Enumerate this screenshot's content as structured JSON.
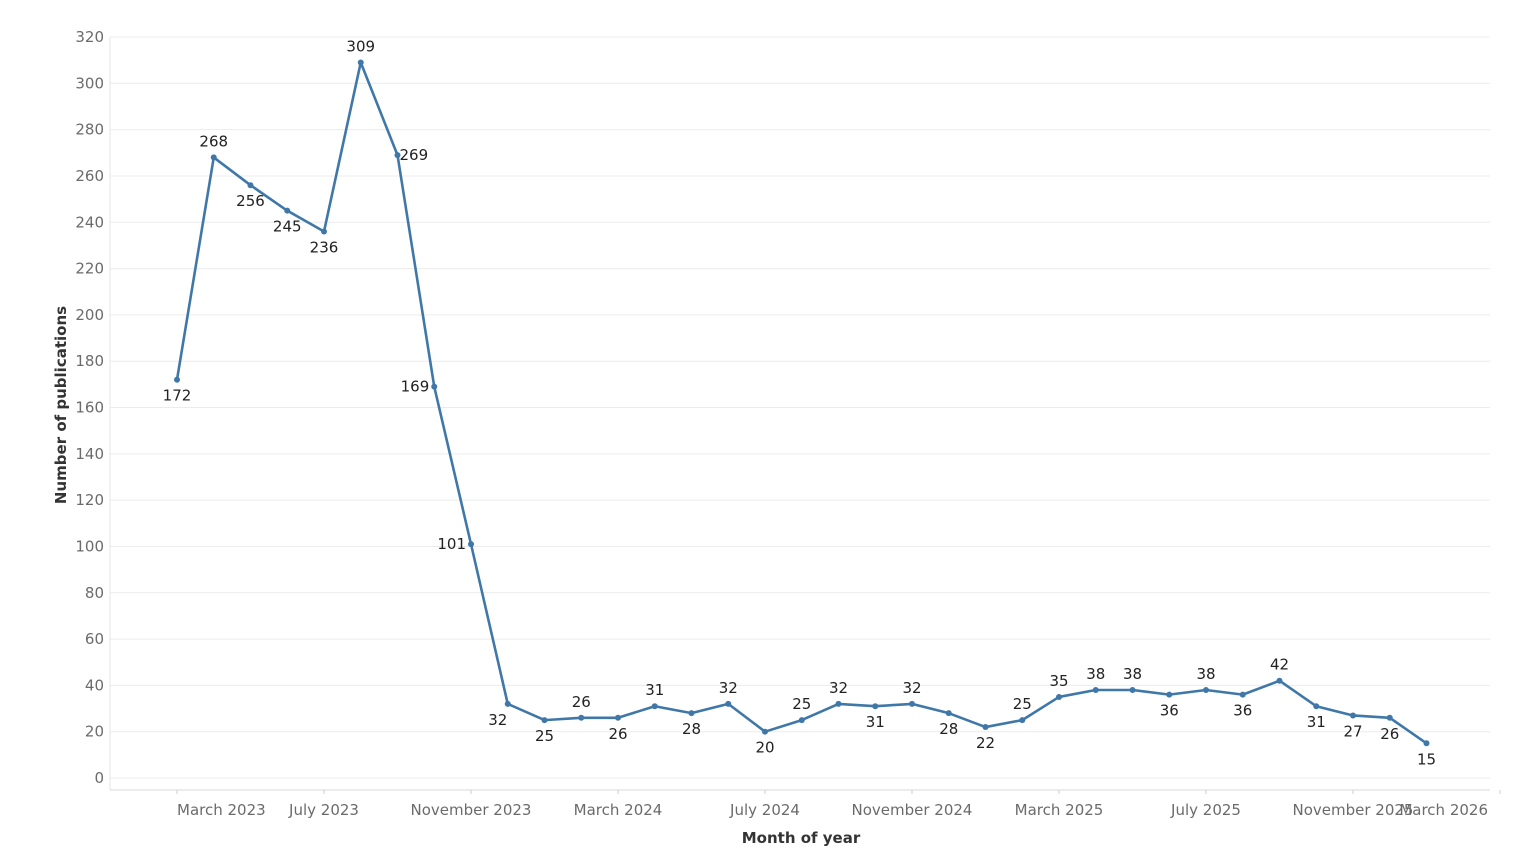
{
  "chart_data": {
    "type": "line",
    "title": "",
    "xlabel": "Month of year",
    "ylabel": "Number of publications",
    "ylim": [
      0,
      320
    ],
    "yticks": [
      0,
      20,
      40,
      60,
      80,
      100,
      120,
      140,
      160,
      180,
      200,
      220,
      240,
      260,
      280,
      300,
      320
    ],
    "xlim": [
      "2023-02",
      "2026-03"
    ],
    "xticks": [
      {
        "date": "2023-03",
        "label": "March 2023"
      },
      {
        "date": "2023-07",
        "label": "July 2023"
      },
      {
        "date": "2023-11",
        "label": "November 2023"
      },
      {
        "date": "2024-03",
        "label": "March 2024"
      },
      {
        "date": "2024-07",
        "label": "July 2024"
      },
      {
        "date": "2024-11",
        "label": "November 2024"
      },
      {
        "date": "2025-03",
        "label": "March 2025"
      },
      {
        "date": "2025-07",
        "label": "July 2025"
      },
      {
        "date": "2025-11",
        "label": "November 2025"
      },
      {
        "date": "2026-03",
        "label": "March 2026"
      }
    ],
    "grid": true,
    "color": "#3f78a8",
    "series": [
      {
        "points": [
          {
            "x": "2023-03",
            "y": 172
          },
          {
            "x": "2023-04",
            "y": 268
          },
          {
            "x": "2023-05",
            "y": 256
          },
          {
            "x": "2023-06",
            "y": 245
          },
          {
            "x": "2023-07",
            "y": 236
          },
          {
            "x": "2023-08",
            "y": 309
          },
          {
            "x": "2023-09",
            "y": 269
          },
          {
            "x": "2023-10",
            "y": 169
          },
          {
            "x": "2023-11",
            "y": 101
          },
          {
            "x": "2023-12",
            "y": 32
          },
          {
            "x": "2024-01",
            "y": 25
          },
          {
            "x": "2024-02",
            "y": 26
          },
          {
            "x": "2024-03",
            "y": 26
          },
          {
            "x": "2024-04",
            "y": 31
          },
          {
            "x": "2024-05",
            "y": 28
          },
          {
            "x": "2024-06",
            "y": 32
          },
          {
            "x": "2024-07",
            "y": 20
          },
          {
            "x": "2024-08",
            "y": 25
          },
          {
            "x": "2024-09",
            "y": 32
          },
          {
            "x": "2024-10",
            "y": 31
          },
          {
            "x": "2024-11",
            "y": 32
          },
          {
            "x": "2024-12",
            "y": 28
          },
          {
            "x": "2025-01",
            "y": 22
          },
          {
            "x": "2025-02",
            "y": 25
          },
          {
            "x": "2025-03",
            "y": 35
          },
          {
            "x": "2025-04",
            "y": 38
          },
          {
            "x": "2025-05",
            "y": 38
          },
          {
            "x": "2025-06",
            "y": 36
          },
          {
            "x": "2025-07",
            "y": 38
          },
          {
            "x": "2025-08",
            "y": 36
          },
          {
            "x": "2025-09",
            "y": 42
          },
          {
            "x": "2025-10",
            "y": 31
          },
          {
            "x": "2025-11",
            "y": 27
          },
          {
            "x": "2025-12",
            "y": 26
          },
          {
            "x": "2026-01",
            "y": 15
          }
        ]
      }
    ]
  }
}
